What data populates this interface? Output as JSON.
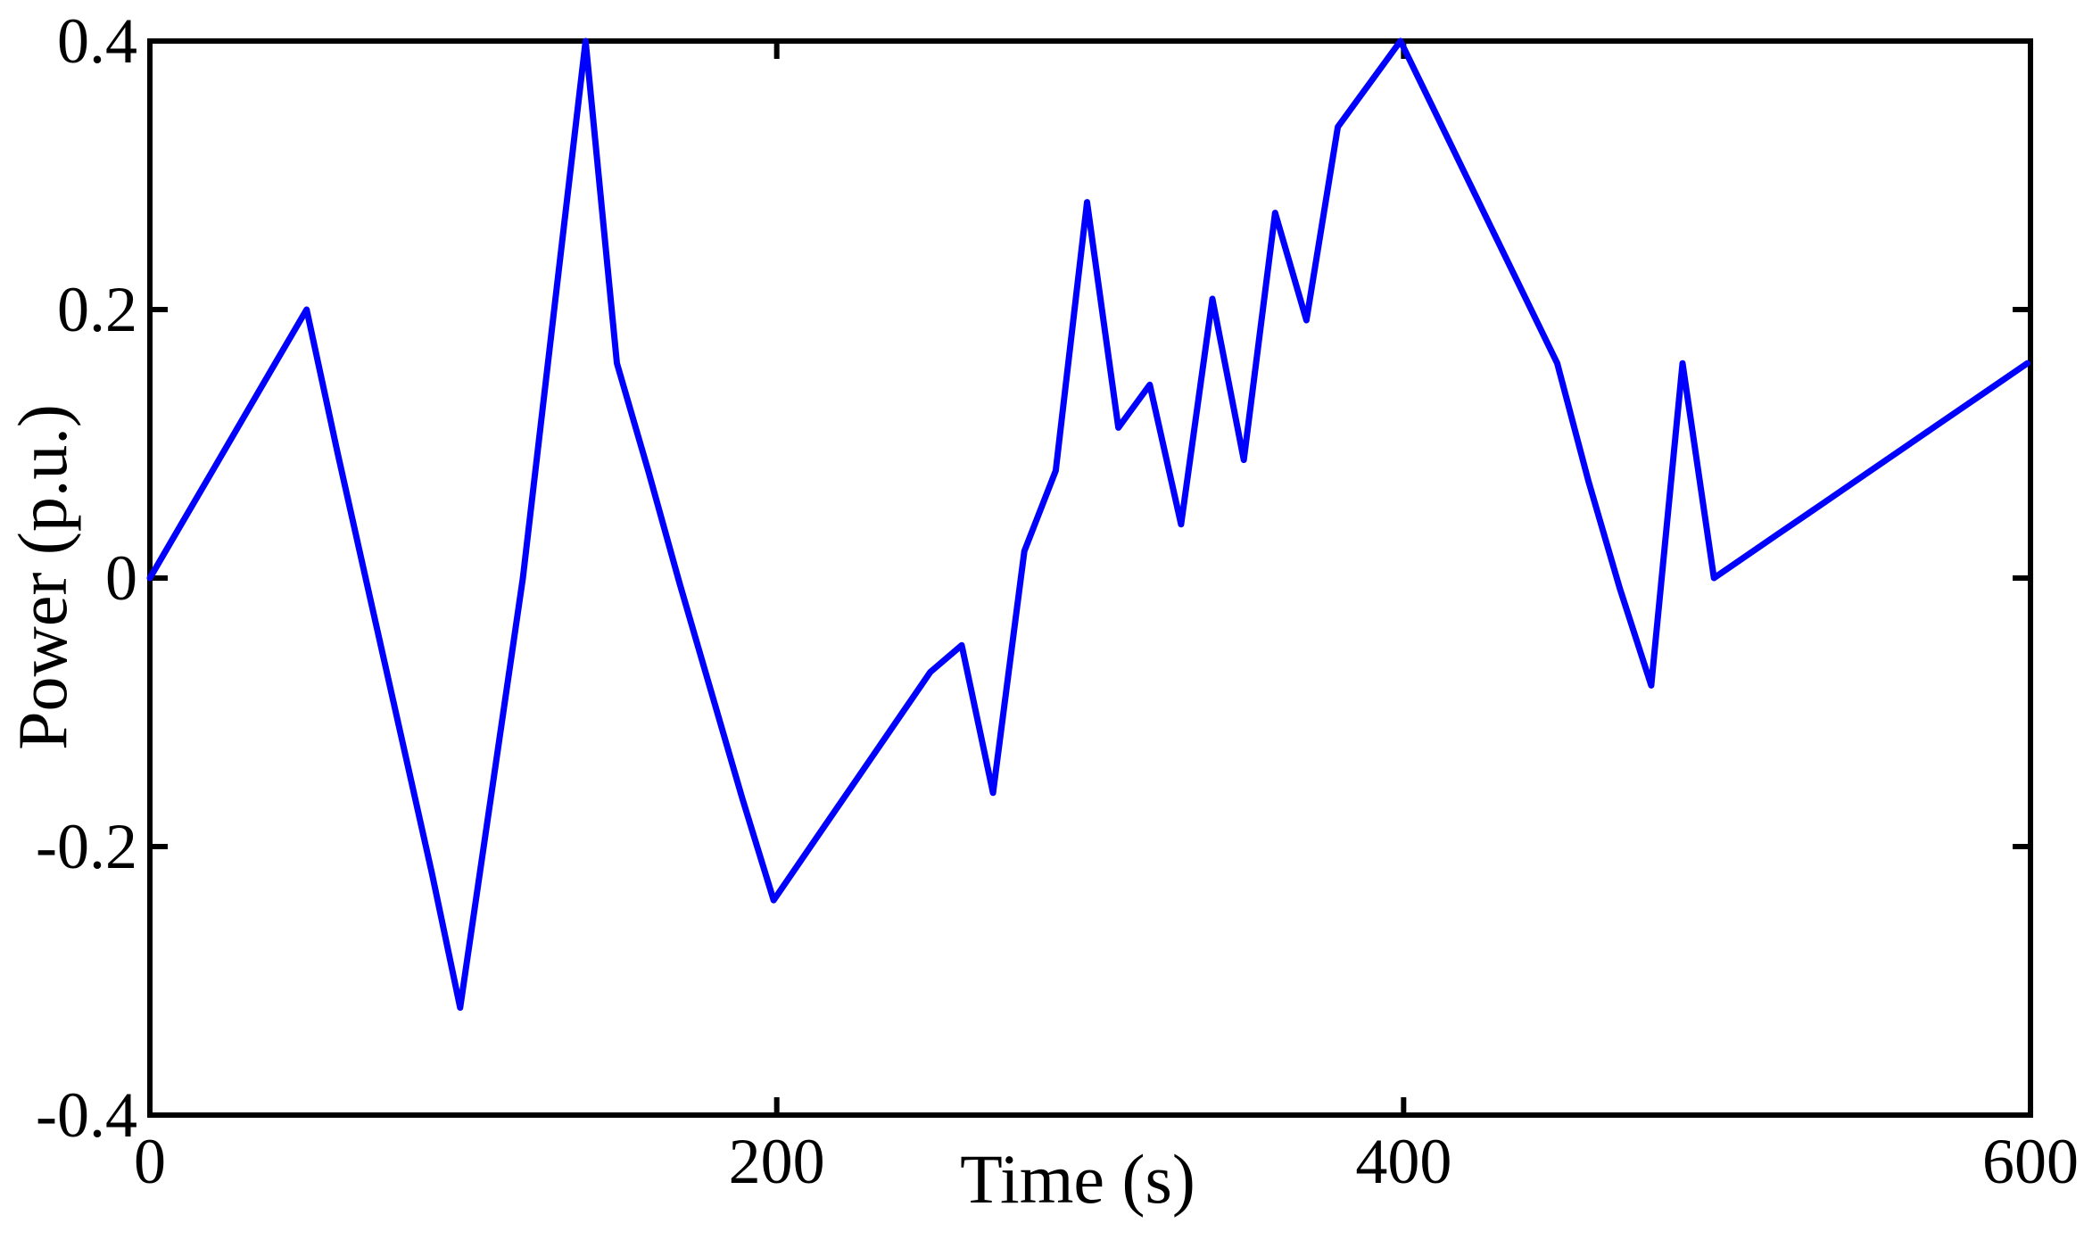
{
  "chart_data": {
    "type": "line",
    "title": "",
    "xlabel": "Time (s)",
    "ylabel": "Power (p.u.)",
    "xlim": [
      0,
      600
    ],
    "ylim": [
      -0.4,
      0.4
    ],
    "xticks": [
      0,
      200,
      400,
      600
    ],
    "xtick_labels": [
      "0",
      "200",
      "400",
      "600"
    ],
    "yticks": [
      -0.4,
      -0.2,
      0,
      0.2,
      0.4
    ],
    "ytick_labels": [
      "-0.4",
      "-0.2",
      "0",
      "0.2",
      "0.4"
    ],
    "grid": false,
    "series": [
      {
        "color": "#0000ff",
        "x": [
          0,
          10,
          20,
          30,
          40,
          50,
          60,
          70,
          80,
          90,
          99,
          109,
          119,
          129,
          139,
          149,
          159,
          169,
          179,
          189,
          199,
          209,
          219,
          229,
          239,
          249,
          259,
          269,
          279,
          289,
          299,
          309,
          319,
          329,
          339,
          349,
          359,
          369,
          379,
          389,
          399,
          409,
          419,
          429,
          439,
          449,
          459,
          469,
          479,
          489,
          499,
          509,
          519,
          529,
          539,
          549,
          559,
          569,
          579,
          589,
          599
        ],
        "y": [
          0,
          0.04,
          0.08,
          0.12,
          0.16,
          0.2,
          0.092,
          -0.012,
          -0.116,
          -0.22,
          -0.32,
          -0.16,
          0,
          0.2,
          0.4,
          0.16,
          0.08,
          -0.004,
          -0.084,
          -0.164,
          -0.24,
          -0.206,
          -0.172,
          -0.138,
          -0.104,
          -0.07,
          -0.05,
          -0.16,
          0.02,
          0.08,
          0.28,
          0.112,
          0.144,
          0.04,
          0.208,
          0.088,
          0.272,
          0.192,
          0.336,
          0.368,
          0.4,
          0.352,
          0.304,
          0.256,
          0.208,
          0.16,
          0.072,
          -0.008,
          -0.08,
          0.16,
          0,
          0.016,
          0.032,
          0.048,
          0.064,
          0.08,
          0.096,
          0.112,
          0.128,
          0.144,
          0.16
        ]
      }
    ]
  }
}
